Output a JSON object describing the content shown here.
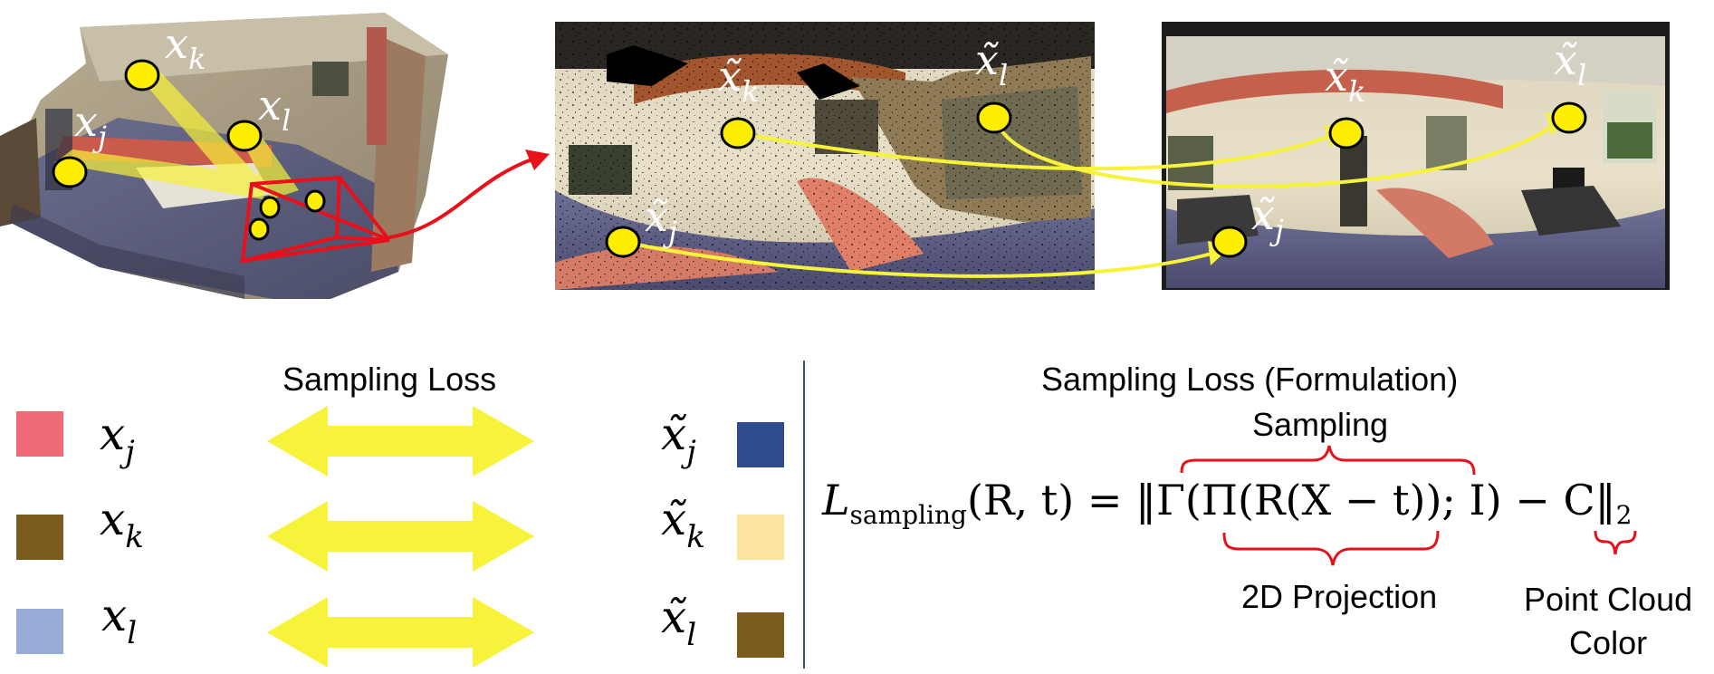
{
  "points": {
    "xj": "x",
    "xj_sub": "j",
    "xk": "x",
    "xk_sub": "k",
    "xl": "x",
    "xl_sub": "l",
    "tilde_xj_sub": "j",
    "tilde_xk_sub": "k",
    "tilde_xl_sub": "l"
  },
  "legend": {
    "title": "Sampling Loss",
    "rows": [
      {
        "left_sub": "j",
        "left_color": "#f06a78",
        "right_sub": "j",
        "right_color": "#2e4b8f"
      },
      {
        "left_sub": "k",
        "left_color": "#7a5a1e",
        "right_sub": "k",
        "right_color": "#fbe4a0"
      },
      {
        "left_sub": "l",
        "left_color": "#97abd7",
        "right_sub": "l",
        "right_color": "#7a5a1e"
      }
    ]
  },
  "formula": {
    "title": "Sampling Loss (Formulation)",
    "brace_top_label": "Sampling",
    "brace_bottom_label": "2D Projection",
    "brace_color_label_line1": "Point Cloud",
    "brace_color_label_line2": "Color",
    "L": "L",
    "L_sub": "sampling",
    "args": "(R, t) = ‖Γ(Π(R(X − t)); I) − C‖",
    "norm_sub": "2"
  },
  "colors": {
    "marker_fill": "#ffee00",
    "arrow_yellow": "#f7f23a",
    "frustum_red": "#e8101a",
    "brace_red": "#e8101a",
    "divider": "#34507a"
  }
}
